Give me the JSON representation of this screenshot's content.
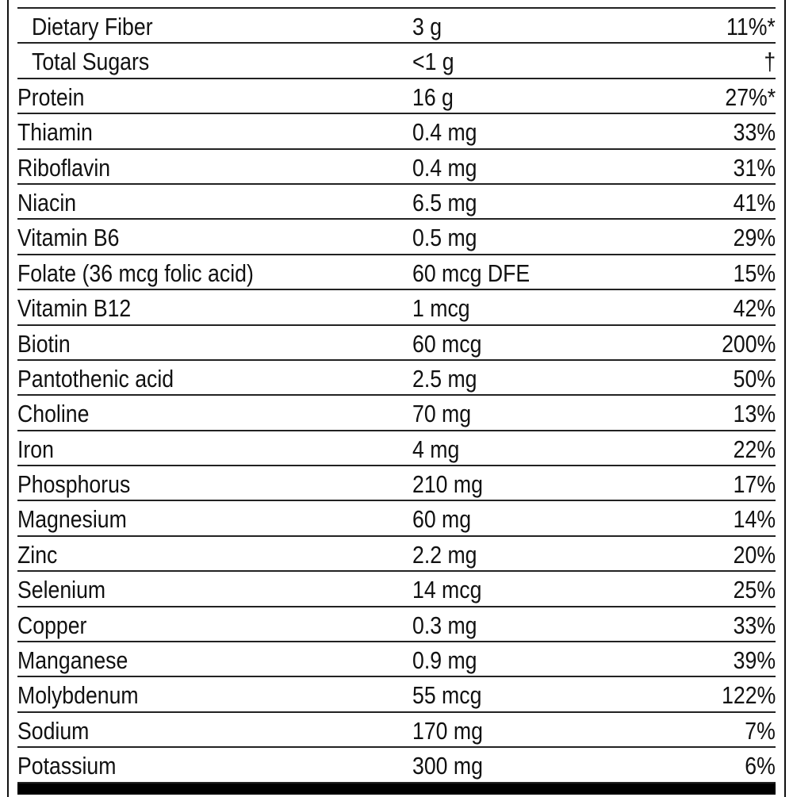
{
  "nutrients": [
    {
      "name": "Dietary Fiber",
      "amount": "3 g",
      "dv": "11%*",
      "indent": true
    },
    {
      "name": "Total Sugars",
      "amount": "<1 g",
      "dv": "†",
      "indent": true
    },
    {
      "name": "Protein",
      "amount": "16 g",
      "dv": "27%*"
    },
    {
      "name": "Thiamin",
      "amount": "0.4 mg",
      "dv": "33%"
    },
    {
      "name": "Riboflavin",
      "amount": "0.4 mg",
      "dv": "31%"
    },
    {
      "name": "Niacin",
      "amount": "6.5 mg",
      "dv": "41%"
    },
    {
      "name": "Vitamin B6",
      "amount": "0.5 mg",
      "dv": "29%"
    },
    {
      "name": "Folate (36 mcg folic acid)",
      "amount": "60 mcg DFE",
      "dv": "15%"
    },
    {
      "name": "Vitamin B12",
      "amount": "1 mcg",
      "dv": "42%"
    },
    {
      "name": "Biotin",
      "amount": "60 mcg",
      "dv": "200%"
    },
    {
      "name": "Pantothenic acid",
      "amount": "2.5 mg",
      "dv": "50%"
    },
    {
      "name": "Choline",
      "amount": "70 mg",
      "dv": "13%"
    },
    {
      "name": "Iron",
      "amount": "4 mg",
      "dv": "22%"
    },
    {
      "name": "Phosphorus",
      "amount": "210 mg",
      "dv": "17%"
    },
    {
      "name": "Magnesium",
      "amount": "60 mg",
      "dv": "14%"
    },
    {
      "name": "Zinc",
      "amount": "2.2 mg",
      "dv": "20%"
    },
    {
      "name": "Selenium",
      "amount": "14 mcg",
      "dv": "25%"
    },
    {
      "name": "Copper",
      "amount": "0.3 mg",
      "dv": "33%"
    },
    {
      "name": "Manganese",
      "amount": "0.9 mg",
      "dv": "39%"
    },
    {
      "name": "Molybdenum",
      "amount": "55 mcg",
      "dv": "122%"
    },
    {
      "name": "Sodium",
      "amount": "170 mg",
      "dv": "7%"
    },
    {
      "name": "Potassium",
      "amount": "300 mg",
      "dv": "6%"
    }
  ]
}
